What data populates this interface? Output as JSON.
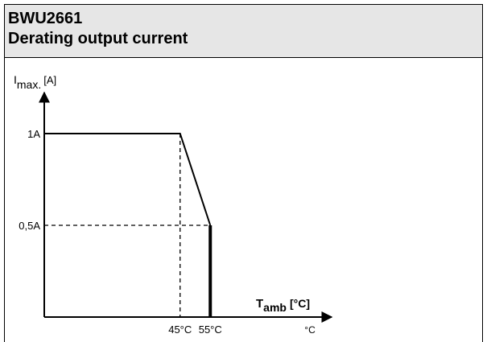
{
  "header": {
    "model": "BWU2661",
    "title": "Derating output current"
  },
  "chart_data": {
    "type": "line",
    "ylabel": {
      "base": "I",
      "sub": "max.",
      "unit": "[A]"
    },
    "xlabel": {
      "base": "T",
      "sub": "amb",
      "unit": "[°C]"
    },
    "x_unit_label": "°C",
    "y_ticks": [
      {
        "label": "1A",
        "value": 1
      },
      {
        "label": "0,5A",
        "value": 0.5
      }
    ],
    "x_ticks": [
      {
        "label": "45°C",
        "value": 45
      },
      {
        "label": "55°C",
        "value": 55
      }
    ],
    "x": [
      0,
      45,
      55,
      55
    ],
    "y": [
      1,
      1,
      0.5,
      0
    ],
    "grid": false
  }
}
